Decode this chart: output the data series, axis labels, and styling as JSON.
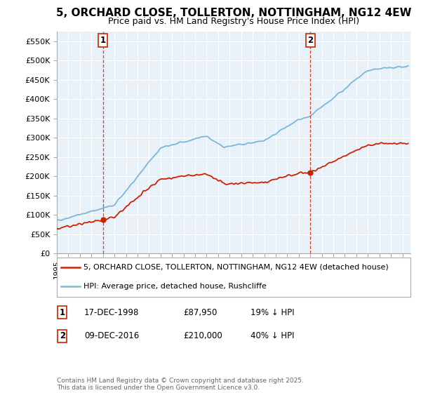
{
  "title": "5, ORCHARD CLOSE, TOLLERTON, NOTTINGHAM, NG12 4EW",
  "subtitle": "Price paid vs. HM Land Registry's House Price Index (HPI)",
  "yticks": [
    0,
    50000,
    100000,
    150000,
    200000,
    250000,
    300000,
    350000,
    400000,
    450000,
    500000,
    550000
  ],
  "ytick_labels": [
    "£0",
    "£50K",
    "£100K",
    "£150K",
    "£200K",
    "£250K",
    "£300K",
    "£350K",
    "£400K",
    "£450K",
    "£500K",
    "£550K"
  ],
  "ylim": [
    0,
    575000
  ],
  "t1": 1999.0,
  "t2": 2017.0,
  "price1": 87950,
  "price2": 210000,
  "legend1": "5, ORCHARD CLOSE, TOLLERTON, NOTTINGHAM, NG12 4EW (detached house)",
  "legend2": "HPI: Average price, detached house, Rushcliffe",
  "table": [
    {
      "num": "1",
      "date": "17-DEC-1998",
      "price": "£87,950",
      "note": "19% ↓ HPI"
    },
    {
      "num": "2",
      "date": "09-DEC-2016",
      "price": "£210,000",
      "note": "40% ↓ HPI"
    }
  ],
  "footer": "Contains HM Land Registry data © Crown copyright and database right 2025.\nThis data is licensed under the Open Government Licence v3.0.",
  "hpi_color": "#7ab8d9",
  "sale_color": "#cc2200",
  "vline_color": "#cc2200",
  "bg_color": "#ffffff",
  "chart_bg": "#e8f0f8",
  "grid_color": "#ffffff",
  "title_fontsize": 11,
  "subtitle_fontsize": 9,
  "tick_fontsize": 8,
  "legend_fontsize": 8,
  "table_fontsize": 8.5,
  "footer_fontsize": 6.5
}
